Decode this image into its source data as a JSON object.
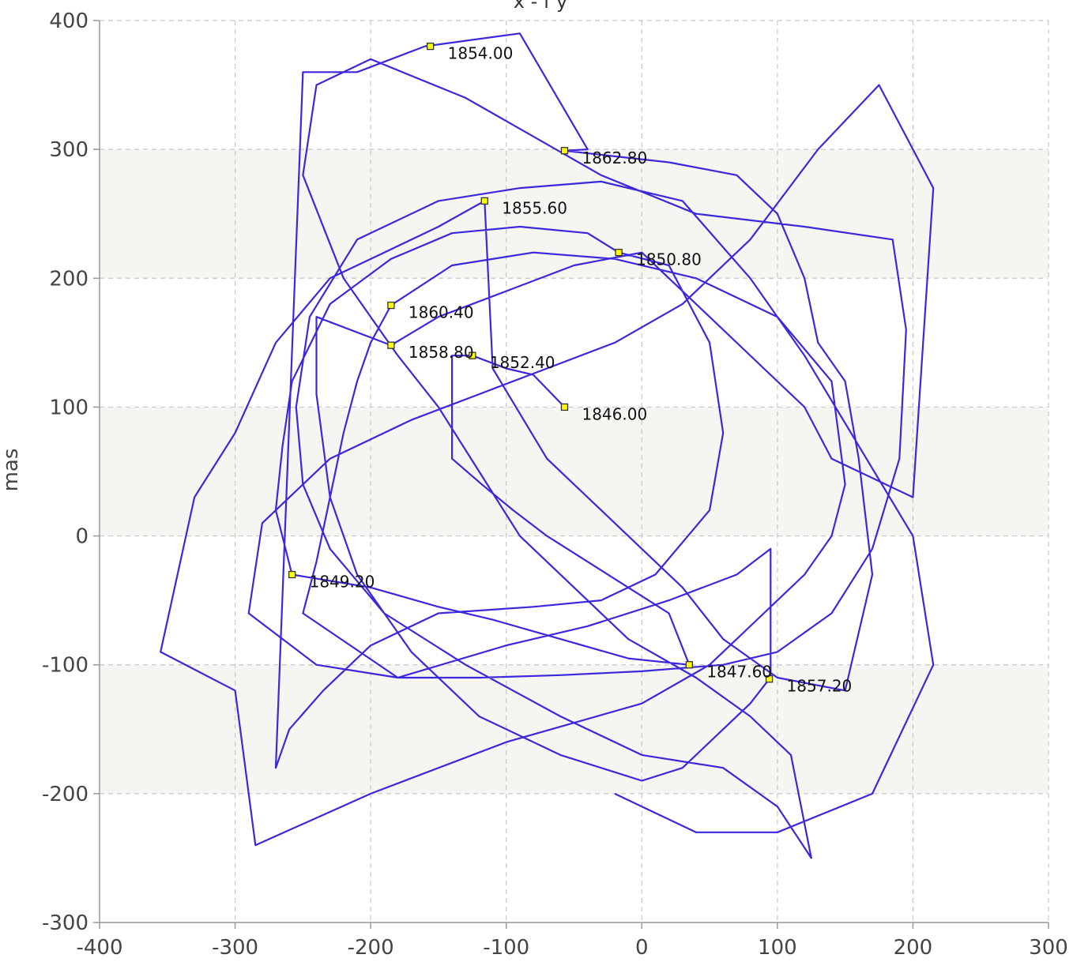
{
  "chart_data": {
    "type": "line",
    "title": "x - f y",
    "xlabel": "",
    "ylabel": "mas",
    "xlim": [
      -400,
      300
    ],
    "ylim": [
      -300,
      400
    ],
    "xticks": [
      -400,
      -300,
      -200,
      -100,
      0,
      100,
      200,
      300
    ],
    "yticks": [
      -300,
      -200,
      -100,
      0,
      100,
      200,
      300,
      400
    ],
    "grid": true,
    "line_color": "#3c28dc",
    "band_color": "#f5f5f2",
    "marker_color": "#ffff00",
    "series": [
      {
        "values": [
          [
            -57,
            100
          ],
          [
            -80,
            125
          ],
          [
            -100,
            130
          ],
          [
            -125,
            140
          ],
          [
            -140,
            140
          ],
          [
            -140,
            60
          ],
          [
            -118,
            40
          ],
          [
            -95,
            20
          ],
          [
            -70,
            0
          ],
          [
            -40,
            -20
          ],
          [
            -10,
            -40
          ],
          [
            20,
            -60
          ],
          [
            35,
            -100
          ],
          [
            -10,
            -95
          ],
          [
            -60,
            -80
          ],
          [
            -110,
            -65
          ],
          [
            -150,
            -55
          ],
          [
            -200,
            -40
          ],
          [
            -258,
            -30
          ],
          [
            -270,
            20
          ],
          [
            -265,
            70
          ],
          [
            -258,
            120
          ],
          [
            -230,
            180
          ],
          [
            -185,
            215
          ],
          [
            -140,
            235
          ],
          [
            -90,
            240
          ],
          [
            -40,
            235
          ],
          [
            -17,
            220
          ],
          [
            20,
            210
          ],
          [
            50,
            150
          ],
          [
            60,
            80
          ],
          [
            50,
            20
          ],
          [
            10,
            -30
          ],
          [
            -30,
            -50
          ],
          [
            -80,
            -55
          ],
          [
            -150,
            -60
          ],
          [
            -200,
            -85
          ],
          [
            -235,
            -120
          ],
          [
            -260,
            -150
          ],
          [
            -270,
            -180
          ],
          [
            -250,
            360
          ],
          [
            -210,
            360
          ],
          [
            -160,
            380
          ],
          [
            -90,
            390
          ],
          [
            -40,
            300
          ],
          [
            -57,
            299
          ],
          [
            20,
            290
          ],
          [
            70,
            280
          ],
          [
            100,
            250
          ],
          [
            120,
            200
          ],
          [
            130,
            150
          ],
          [
            150,
            120
          ],
          [
            160,
            60
          ],
          [
            170,
            -30
          ],
          [
            150,
            -120
          ],
          [
            100,
            -110
          ],
          [
            60,
            -80
          ],
          [
            30,
            -40
          ],
          [
            0,
            -10
          ],
          [
            -30,
            20
          ],
          [
            -70,
            60
          ],
          [
            -110,
            130
          ],
          [
            -116,
            260
          ],
          [
            -150,
            240
          ],
          [
            -190,
            220
          ],
          [
            -230,
            200
          ],
          [
            -270,
            150
          ],
          [
            -300,
            80
          ],
          [
            -330,
            30
          ],
          [
            -355,
            -90
          ],
          [
            -300,
            -120
          ],
          [
            -285,
            -240
          ],
          [
            -200,
            -200
          ],
          [
            -100,
            -160
          ],
          [
            0,
            -130
          ],
          [
            50,
            -100
          ],
          [
            90,
            -60
          ],
          [
            120,
            -30
          ],
          [
            140,
            0
          ],
          [
            150,
            40
          ],
          [
            140,
            120
          ],
          [
            100,
            170
          ],
          [
            40,
            200
          ],
          [
            -20,
            215
          ],
          [
            -80,
            220
          ],
          [
            -140,
            210
          ],
          [
            -185,
            179
          ],
          [
            -200,
            150
          ],
          [
            -210,
            120
          ],
          [
            -220,
            80
          ],
          [
            -230,
            30
          ],
          [
            -240,
            -20
          ],
          [
            -250,
            -60
          ],
          [
            -180,
            -110
          ],
          [
            -100,
            -85
          ],
          [
            -40,
            -70
          ],
          [
            20,
            -50
          ],
          [
            70,
            -30
          ],
          [
            95,
            -10
          ],
          [
            95,
            -110
          ],
          [
            94,
            -111
          ],
          [
            80,
            -130
          ],
          [
            60,
            -150
          ],
          [
            30,
            -180
          ],
          [
            0,
            -190
          ],
          [
            -60,
            -170
          ],
          [
            -120,
            -140
          ],
          [
            -170,
            -90
          ],
          [
            -210,
            -30
          ],
          [
            -230,
            30
          ],
          [
            -240,
            110
          ],
          [
            -240,
            170
          ],
          [
            -185,
            148
          ],
          [
            -150,
            170
          ],
          [
            -100,
            190
          ],
          [
            -50,
            210
          ],
          [
            0,
            220
          ],
          [
            50,
            170
          ],
          [
            90,
            130
          ],
          [
            120,
            100
          ],
          [
            140,
            60
          ],
          [
            200,
            30
          ],
          [
            215,
            270
          ],
          [
            175,
            350
          ],
          [
            130,
            300
          ],
          [
            80,
            230
          ],
          [
            30,
            180
          ],
          [
            -20,
            150
          ],
          [
            -70,
            130
          ],
          [
            -120,
            110
          ],
          [
            -170,
            90
          ],
          [
            -230,
            60
          ],
          [
            -280,
            10
          ],
          [
            -290,
            -60
          ],
          [
            -240,
            -100
          ],
          [
            -180,
            -110
          ],
          [
            -120,
            -110
          ],
          [
            -60,
            -108
          ],
          [
            0,
            -105
          ],
          [
            60,
            -100
          ],
          [
            100,
            -90
          ],
          [
            140,
            -60
          ],
          [
            170,
            -10
          ],
          [
            190,
            60
          ],
          [
            195,
            160
          ],
          [
            185,
            230
          ],
          [
            120,
            240
          ],
          [
            40,
            250
          ],
          [
            -30,
            280
          ],
          [
            -80,
            310
          ],
          [
            -130,
            340
          ],
          [
            -200,
            370
          ],
          [
            -240,
            350
          ],
          [
            -250,
            280
          ],
          [
            -220,
            200
          ],
          [
            -180,
            140
          ],
          [
            -150,
            100
          ],
          [
            -120,
            50
          ],
          [
            -90,
            0
          ],
          [
            -50,
            -40
          ],
          [
            -10,
            -80
          ],
          [
            40,
            -110
          ],
          [
            80,
            -140
          ],
          [
            110,
            -170
          ],
          [
            125,
            -250
          ],
          [
            100,
            -210
          ],
          [
            60,
            -180
          ],
          [
            0,
            -170
          ],
          [
            -60,
            -140
          ],
          [
            -130,
            -100
          ],
          [
            -190,
            -60
          ],
          [
            -230,
            -10
          ],
          [
            -250,
            40
          ],
          [
            -255,
            100
          ],
          [
            -245,
            170
          ],
          [
            -210,
            230
          ],
          [
            -150,
            260
          ],
          [
            -90,
            270
          ],
          [
            -30,
            275
          ],
          [
            30,
            260
          ],
          [
            80,
            200
          ],
          [
            120,
            140
          ],
          [
            160,
            70
          ],
          [
            200,
            0
          ],
          [
            215,
            -100
          ],
          [
            170,
            -200
          ],
          [
            100,
            -230
          ],
          [
            40,
            -230
          ],
          [
            -20,
            -200
          ]
        ]
      }
    ],
    "labeled_points": [
      {
        "x": -57,
        "y": 100,
        "label": "1846.00"
      },
      {
        "x": 35,
        "y": -100,
        "label": "1847.60"
      },
      {
        "x": -258,
        "y": -30,
        "label": "1849.20"
      },
      {
        "x": -17,
        "y": 220,
        "label": "1850.80"
      },
      {
        "x": -125,
        "y": 140,
        "label": "1852.40"
      },
      {
        "x": -156,
        "y": 380,
        "label": "1854.00"
      },
      {
        "x": -116,
        "y": 260,
        "label": "1855.60"
      },
      {
        "x": 94,
        "y": -111,
        "label": "1857.20"
      },
      {
        "x": -185,
        "y": 148,
        "label": "1858.80"
      },
      {
        "x": -185,
        "y": 179,
        "label": "1860.40"
      },
      {
        "x": -57,
        "y": 299,
        "label": "1862.80"
      }
    ]
  }
}
